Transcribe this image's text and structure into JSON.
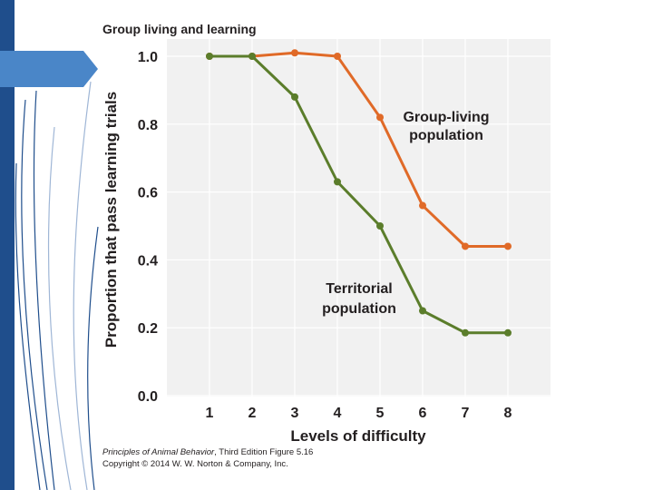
{
  "slide": {
    "accent_color": "#1f4e8c",
    "arrow_color": "#4a86c8",
    "line_color": "#1f4e8c"
  },
  "chart_data": {
    "type": "line",
    "title": "Group living and learning",
    "xlabel": "Levels of difficulty",
    "ylabel": "Proportion that pass learning trials",
    "x": [
      1,
      2,
      3,
      4,
      5,
      6,
      7,
      8
    ],
    "xlim": [
      0,
      9
    ],
    "ylim": [
      0,
      1.0
    ],
    "x_ticks": [
      "1",
      "2",
      "3",
      "4",
      "5",
      "6",
      "7",
      "8"
    ],
    "y_ticks": [
      "0.0",
      "0.2",
      "0.4",
      "0.6",
      "0.8",
      "1.0"
    ],
    "grid": true,
    "series": [
      {
        "name_lines": [
          "Group-living",
          "population"
        ],
        "color": "#e06a28",
        "values": [
          1.0,
          1.0,
          1.01,
          1.0,
          0.82,
          0.56,
          0.44,
          0.44
        ]
      },
      {
        "name_lines": [
          "Territorial",
          "population"
        ],
        "color": "#5b7d2b",
        "values": [
          1.0,
          1.0,
          0.88,
          0.63,
          0.5,
          0.25,
          0.185,
          0.185
        ]
      }
    ]
  },
  "caption": {
    "book": "Principles of Animal Behavior",
    "edition": ", Third Edition  Figure 5.16",
    "copyright": "Copyright © 2014 W. W. Norton & Company, Inc."
  }
}
